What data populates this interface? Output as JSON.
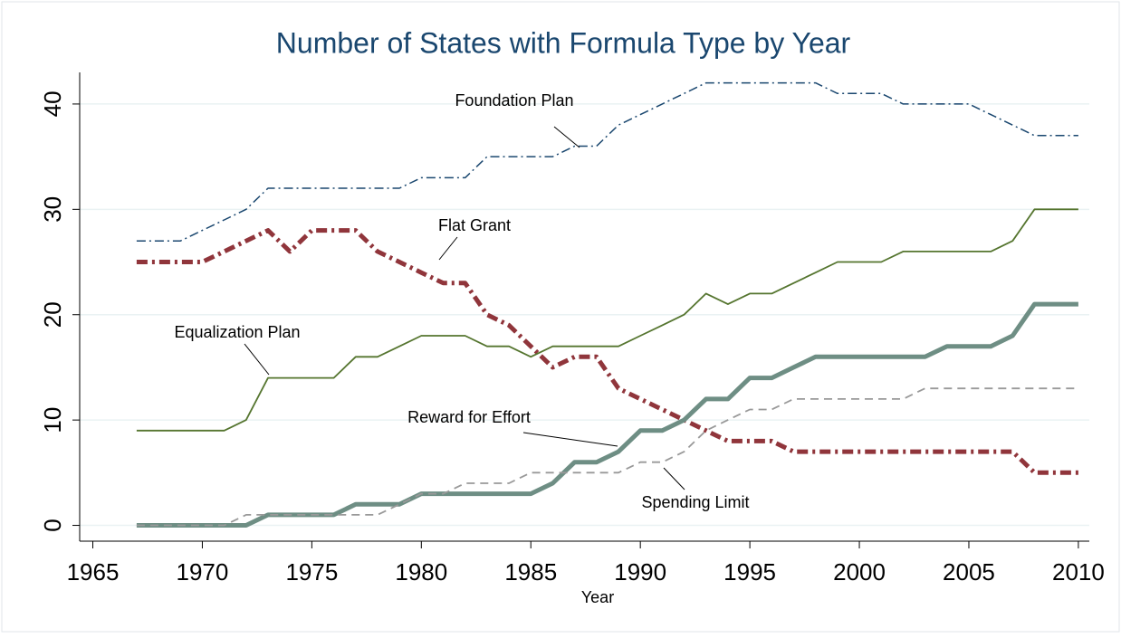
{
  "chart_data": {
    "type": "line",
    "title": "Number of States with Formula Type by Year",
    "x_label": "Year",
    "x": [
      1967,
      1968,
      1969,
      1970,
      1971,
      1972,
      1973,
      1974,
      1975,
      1976,
      1977,
      1978,
      1979,
      1980,
      1981,
      1982,
      1983,
      1984,
      1985,
      1986,
      1987,
      1988,
      1989,
      1990,
      1991,
      1992,
      1993,
      1994,
      1995,
      1996,
      1997,
      1998,
      1999,
      2000,
      2001,
      2002,
      2003,
      2004,
      2005,
      2006,
      2007,
      2008,
      2009,
      2010
    ],
    "series": [
      {
        "name": "Foundation Plan",
        "color": "#1a476f",
        "values": [
          27,
          27,
          27,
          28,
          29,
          30,
          32,
          32,
          32,
          32,
          32,
          32,
          32,
          33,
          33,
          33,
          35,
          35,
          35,
          35,
          36,
          36,
          38,
          39,
          40,
          41,
          42,
          42,
          42,
          42,
          42,
          42,
          41,
          41,
          41,
          40,
          40,
          40,
          40,
          39,
          38,
          37,
          37,
          37
        ]
      },
      {
        "name": "Flat Grant",
        "color": "#90353b",
        "values": [
          25,
          25,
          25,
          25,
          26,
          27,
          28,
          26,
          28,
          28,
          28,
          26,
          25,
          24,
          23,
          23,
          20,
          19,
          17,
          15,
          16,
          16,
          13,
          12,
          11,
          10,
          9,
          8,
          8,
          8,
          7,
          7,
          7,
          7,
          7,
          7,
          7,
          7,
          7,
          7,
          7,
          5,
          5,
          5
        ]
      },
      {
        "name": "Equalization Plan",
        "color": "#55752f",
        "values": [
          9,
          9,
          9,
          9,
          9,
          10,
          14,
          14,
          14,
          14,
          16,
          16,
          17,
          18,
          18,
          18,
          17,
          17,
          16,
          17,
          17,
          17,
          17,
          18,
          19,
          20,
          22,
          21,
          22,
          22,
          23,
          24,
          25,
          25,
          25,
          26,
          26,
          26,
          26,
          26,
          27,
          30,
          30,
          30
        ]
      },
      {
        "name": "Reward for Effort",
        "color": "#6e8e84",
        "values": [
          0,
          0,
          0,
          0,
          0,
          0,
          1,
          1,
          1,
          1,
          2,
          2,
          2,
          3,
          3,
          3,
          3,
          3,
          3,
          4,
          6,
          6,
          7,
          9,
          9,
          10,
          12,
          12,
          14,
          14,
          15,
          16,
          16,
          16,
          16,
          16,
          16,
          17,
          17,
          17,
          18,
          21,
          21,
          21
        ]
      },
      {
        "name": "Spending Limit",
        "color": "#999999",
        "values": [
          0,
          0,
          0,
          0,
          0,
          1,
          1,
          1,
          1,
          1,
          1,
          1,
          2,
          3,
          3,
          4,
          4,
          4,
          5,
          5,
          5,
          5,
          5,
          6,
          6,
          7,
          9,
          10,
          11,
          11,
          12,
          12,
          12,
          12,
          12,
          12,
          13,
          13,
          13,
          13,
          13,
          13,
          13,
          13
        ]
      }
    ],
    "xlim": [
      1964.4,
      2010.5
    ],
    "xticks": [
      1965,
      1970,
      1975,
      1980,
      1985,
      1990,
      1995,
      2000,
      2005,
      2010
    ],
    "ylim": [
      -1.5,
      43
    ],
    "yticks": [
      0,
      10,
      20,
      30,
      40
    ],
    "grid": true
  }
}
